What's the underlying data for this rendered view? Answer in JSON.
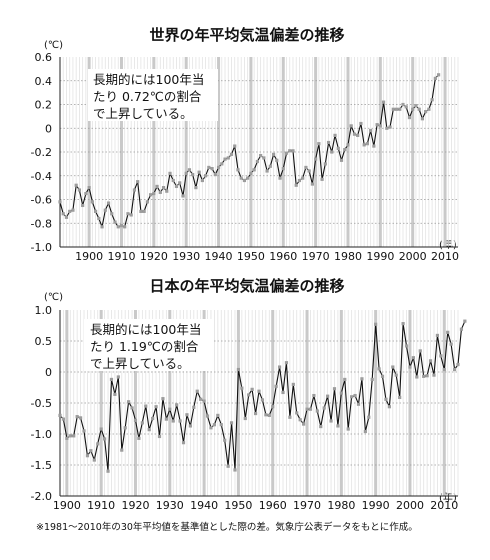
{
  "chart_data": [
    {
      "type": "line",
      "title": "世界の年平均気温偏差の推移",
      "ylabel": "(℃)",
      "xlabel": "(年)",
      "ylim": [
        -1.0,
        0.6
      ],
      "yticks": [
        0.6,
        0.4,
        0.2,
        0,
        -0.2,
        -0.4,
        -0.6,
        -0.8,
        -1.0
      ],
      "ytick_labels": [
        "0.6",
        "0.4",
        "0.2",
        "0",
        "-0.2",
        "-0.4",
        "-0.6",
        "-0.8",
        "-1.0"
      ],
      "xlim": [
        1891,
        2014
      ],
      "xticks": [
        1900,
        1910,
        1920,
        1930,
        1940,
        1950,
        1960,
        1970,
        1980,
        1990,
        2000,
        2010
      ],
      "grid": true,
      "annotation": [
        "長期的には100年当",
        "たり 0.72℃の割合",
        "で上昇している。"
      ],
      "x_start": 1891,
      "series": [
        {
          "values": [
            -0.62,
            -0.72,
            -0.75,
            -0.7,
            -0.69,
            -0.48,
            -0.52,
            -0.65,
            -0.55,
            -0.5,
            -0.62,
            -0.7,
            -0.76,
            -0.83,
            -0.69,
            -0.63,
            -0.72,
            -0.79,
            -0.83,
            -0.82,
            -0.83,
            -0.72,
            -0.73,
            -0.52,
            -0.45,
            -0.7,
            -0.7,
            -0.62,
            -0.56,
            -0.55,
            -0.49,
            -0.54,
            -0.5,
            -0.53,
            -0.38,
            -0.44,
            -0.49,
            -0.46,
            -0.57,
            -0.38,
            -0.35,
            -0.39,
            -0.5,
            -0.37,
            -0.44,
            -0.4,
            -0.33,
            -0.34,
            -0.39,
            -0.33,
            -0.3,
            -0.26,
            -0.25,
            -0.22,
            -0.15,
            -0.35,
            -0.42,
            -0.44,
            -0.42,
            -0.38,
            -0.35,
            -0.28,
            -0.23,
            -0.25,
            -0.36,
            -0.32,
            -0.22,
            -0.27,
            -0.42,
            -0.34,
            -0.21,
            -0.19,
            -0.19,
            -0.48,
            -0.44,
            -0.42,
            -0.33,
            -0.36,
            -0.47,
            -0.26,
            -0.13,
            -0.43,
            -0.3,
            -0.12,
            -0.2,
            -0.06,
            -0.17,
            -0.27,
            -0.18,
            -0.14,
            0.02,
            -0.05,
            -0.06,
            0.04,
            -0.14,
            -0.13,
            -0.02,
            -0.15,
            0.03,
            0.02,
            0.22,
            0.0,
            0.01,
            0.16,
            0.16,
            0.16,
            0.2,
            0.18,
            0.09,
            0.16,
            0.19,
            0.16,
            0.08,
            0.14,
            0.16,
            0.24,
            0.42,
            0.45
          ]
        }
      ]
    },
    {
      "type": "line",
      "title": "日本の年平均気温偏差の推移",
      "ylabel": "(℃)",
      "xlabel": "(年)",
      "ylim": [
        -2.0,
        1.0
      ],
      "yticks": [
        1.0,
        0.5,
        0,
        -0.5,
        -1.0,
        -1.5,
        -2.0
      ],
      "ytick_labels": [
        "1.0",
        "0.5",
        "0",
        "-0.5",
        "-1.0",
        "-1.5",
        "-2.0"
      ],
      "xlim": [
        1898,
        2014
      ],
      "xticks": [
        1900,
        1910,
        1920,
        1930,
        1940,
        1950,
        1960,
        1970,
        1980,
        1990,
        2000,
        2010
      ],
      "grid": true,
      "annotation": [
        "長期的には100年当",
        "たり 1.19℃の割合",
        "で上昇している。"
      ],
      "x_start": 1898,
      "series": [
        {
          "values": [
            -0.7,
            -0.76,
            -1.07,
            -1.03,
            -1.03,
            -0.72,
            -0.74,
            -0.95,
            -1.35,
            -1.27,
            -1.42,
            -1.16,
            -0.92,
            -1.08,
            -1.6,
            -0.12,
            -0.36,
            -0.08,
            -1.26,
            -0.9,
            -0.48,
            -0.58,
            -0.78,
            -1.07,
            -0.82,
            -0.55,
            -0.93,
            -0.75,
            -0.56,
            -1.04,
            -0.43,
            -0.76,
            -0.6,
            -0.79,
            -0.53,
            -0.79,
            -1.14,
            -0.69,
            -0.87,
            -0.57,
            -0.31,
            -0.44,
            -0.47,
            -0.71,
            -0.9,
            -0.85,
            -0.7,
            -0.85,
            -1.1,
            -1.52,
            -0.82,
            -1.58,
            0.04,
            -0.26,
            -0.75,
            -0.37,
            -0.28,
            -0.67,
            -0.31,
            -0.45,
            -0.69,
            -0.7,
            -0.56,
            -0.23,
            0.08,
            -0.33,
            0.15,
            -0.73,
            -0.2,
            -0.66,
            -0.77,
            -0.84,
            -0.6,
            -0.6,
            -0.38,
            -0.63,
            -0.88,
            -0.58,
            -0.39,
            -0.79,
            -0.27,
            -0.87,
            -0.34,
            -0.12,
            -0.92,
            -0.4,
            -0.38,
            -0.52,
            -0.11,
            -0.96,
            -0.73,
            -0.12,
            0.77,
            0.05,
            -0.07,
            -0.44,
            -0.56,
            0.08,
            -0.05,
            -0.41,
            0.78,
            0.42,
            0.08,
            0.23,
            -0.08,
            0.34,
            -0.07,
            -0.06,
            0.18,
            -0.05,
            0.59,
            0.26,
            0.04,
            0.64,
            0.45,
            0.04,
            0.12,
            0.69,
            0.82
          ]
        }
      ]
    }
  ],
  "footnote": "※1981〜2010年の30年平均値を基準値とした際の差。気象庁公表データをもとに作成。"
}
